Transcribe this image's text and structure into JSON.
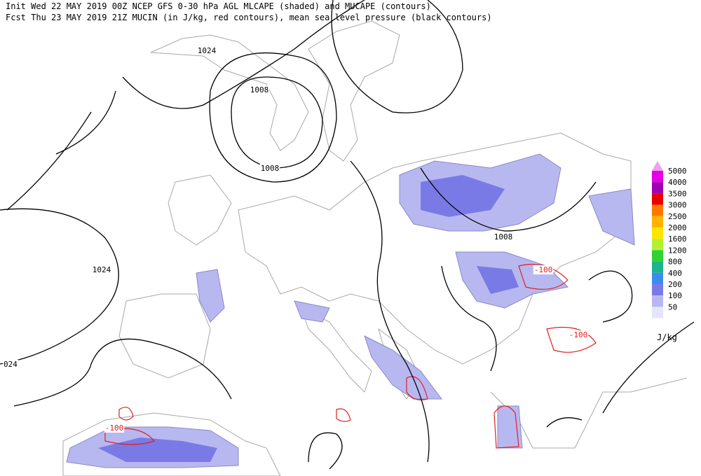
{
  "header": {
    "line1": "Init  Wed 22 MAY 2019 00Z  NCEP GFS 0-30 hPa AGL MLCAPE (shaded) and MUCAPE (contours)",
    "line2": "Fcst Thu 23 MAY 2019 21Z  MUCIN (in J/kg, red contours), mean sea level pressure (black contours)"
  },
  "contour_labels": [
    1024,
    1008,
    1008,
    1024,
    "024",
    1008,
    -100,
    -100,
    -100
  ],
  "legend": {
    "top_color": "#f0a0f0",
    "levels": [
      {
        "value": 5000,
        "color": "#e600e6"
      },
      {
        "value": 4000,
        "color": "#a000b4"
      },
      {
        "value": 3500,
        "color": "#e60000"
      },
      {
        "value": 3000,
        "color": "#ff7800"
      },
      {
        "value": 2500,
        "color": "#ffb400"
      },
      {
        "value": 2000,
        "color": "#ffe600"
      },
      {
        "value": 1600,
        "color": "#b4f032"
      },
      {
        "value": 1200,
        "color": "#32d232"
      },
      {
        "value": 800,
        "color": "#1eb48c"
      },
      {
        "value": 400,
        "color": "#3c8cf0"
      },
      {
        "value": 200,
        "color": "#7a7ae6"
      },
      {
        "value": 100,
        "color": "#b8b8f0"
      },
      {
        "value": 50,
        "color": "#e6e6fa"
      }
    ],
    "unit": "J/kg"
  }
}
